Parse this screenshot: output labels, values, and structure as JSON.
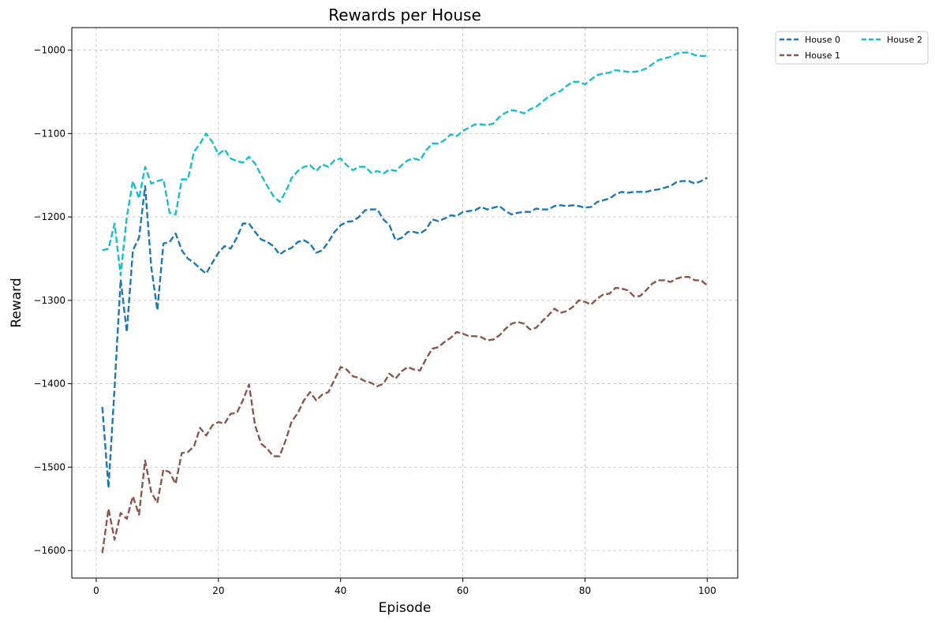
{
  "chart_data": {
    "type": "line",
    "title": "Rewards per House",
    "xlabel": "Episode",
    "ylabel": "Reward",
    "xlim": [
      -4,
      105
    ],
    "ylim": [
      -1633,
      -973
    ],
    "xticks": [
      0,
      20,
      40,
      60,
      80,
      100
    ],
    "yticks": [
      -1600,
      -1500,
      -1400,
      -1300,
      -1200,
      -1100,
      -1000
    ],
    "grid": true,
    "legend_position": "outside-top-right",
    "series": [
      {
        "name": "House 0",
        "color": "#1f77b4",
        "x": [
          1,
          2,
          3,
          4,
          5,
          6,
          7,
          8,
          9,
          10,
          11,
          12,
          13,
          14,
          15,
          16,
          17,
          18,
          19,
          20,
          21,
          22,
          23,
          24,
          25,
          26,
          27,
          28,
          29,
          30,
          31,
          32,
          33,
          34,
          35,
          36,
          37,
          38,
          39,
          40,
          41,
          42,
          43,
          44,
          45,
          46,
          47,
          48,
          49,
          50,
          51,
          52,
          53,
          54,
          55,
          56,
          57,
          58,
          59,
          60,
          61,
          62,
          63,
          64,
          65,
          66,
          67,
          68,
          69,
          70,
          71,
          72,
          73,
          74,
          75,
          76,
          77,
          78,
          79,
          80,
          81,
          82,
          83,
          84,
          85,
          86,
          87,
          88,
          89,
          90,
          91,
          92,
          93,
          94,
          95,
          96,
          97,
          98,
          99,
          100
        ],
        "values": [
          -1428,
          -1525,
          -1405,
          -1275,
          -1338,
          -1240,
          -1225,
          -1163,
          -1260,
          -1312,
          -1232,
          -1230,
          -1220,
          -1240,
          -1250,
          -1255,
          -1262,
          -1268,
          -1255,
          -1243,
          -1235,
          -1238,
          -1225,
          -1208,
          -1208,
          -1218,
          -1227,
          -1230,
          -1235,
          -1245,
          -1240,
          -1237,
          -1230,
          -1228,
          -1232,
          -1243,
          -1240,
          -1230,
          -1218,
          -1210,
          -1206,
          -1205,
          -1200,
          -1192,
          -1191,
          -1191,
          -1203,
          -1210,
          -1228,
          -1225,
          -1218,
          -1218,
          -1220,
          -1215,
          -1203,
          -1205,
          -1202,
          -1198,
          -1199,
          -1194,
          -1193,
          -1192,
          -1188,
          -1191,
          -1189,
          -1187,
          -1193,
          -1197,
          -1195,
          -1194,
          -1194,
          -1190,
          -1191,
          -1191,
          -1187,
          -1186,
          -1187,
          -1186,
          -1187,
          -1189,
          -1188,
          -1182,
          -1180,
          -1178,
          -1173,
          -1170,
          -1171,
          -1170,
          -1170,
          -1170,
          -1168,
          -1167,
          -1165,
          -1163,
          -1158,
          -1157,
          -1157,
          -1160,
          -1157,
          -1153
        ]
      },
      {
        "name": "House 1",
        "color": "#8c564b",
        "x": [
          1,
          2,
          3,
          4,
          5,
          6,
          7,
          8,
          9,
          10,
          11,
          12,
          13,
          14,
          15,
          16,
          17,
          18,
          19,
          20,
          21,
          22,
          23,
          24,
          25,
          26,
          27,
          28,
          29,
          30,
          31,
          32,
          33,
          34,
          35,
          36,
          37,
          38,
          39,
          40,
          41,
          42,
          43,
          44,
          45,
          46,
          47,
          48,
          49,
          50,
          51,
          52,
          53,
          54,
          55,
          56,
          57,
          58,
          59,
          60,
          61,
          62,
          63,
          64,
          65,
          66,
          67,
          68,
          69,
          70,
          71,
          72,
          73,
          74,
          75,
          76,
          77,
          78,
          79,
          80,
          81,
          82,
          83,
          84,
          85,
          86,
          87,
          88,
          89,
          90,
          91,
          92,
          93,
          94,
          95,
          96,
          97,
          98,
          99,
          100
        ],
        "values": [
          -1603,
          -1550,
          -1587,
          -1555,
          -1562,
          -1535,
          -1557,
          -1492,
          -1530,
          -1543,
          -1503,
          -1506,
          -1520,
          -1483,
          -1482,
          -1475,
          -1453,
          -1462,
          -1450,
          -1446,
          -1448,
          -1436,
          -1435,
          -1420,
          -1401,
          -1450,
          -1472,
          -1478,
          -1487,
          -1487,
          -1468,
          -1445,
          -1435,
          -1420,
          -1410,
          -1420,
          -1413,
          -1410,
          -1395,
          -1380,
          -1383,
          -1391,
          -1393,
          -1397,
          -1399,
          -1403,
          -1400,
          -1388,
          -1394,
          -1385,
          -1380,
          -1383,
          -1384,
          -1370,
          -1358,
          -1356,
          -1350,
          -1345,
          -1338,
          -1340,
          -1343,
          -1343,
          -1344,
          -1348,
          -1347,
          -1342,
          -1334,
          -1328,
          -1326,
          -1328,
          -1335,
          -1333,
          -1325,
          -1318,
          -1310,
          -1315,
          -1313,
          -1308,
          -1300,
          -1302,
          -1305,
          -1298,
          -1293,
          -1292,
          -1285,
          -1286,
          -1288,
          -1295,
          -1295,
          -1288,
          -1280,
          -1276,
          -1276,
          -1278,
          -1274,
          -1272,
          -1272,
          -1276,
          -1276,
          -1282
        ]
      },
      {
        "name": "House 2",
        "color": "#17becf",
        "x": [
          1,
          2,
          3,
          4,
          5,
          6,
          7,
          8,
          9,
          10,
          11,
          12,
          13,
          14,
          15,
          16,
          17,
          18,
          19,
          20,
          21,
          22,
          23,
          24,
          25,
          26,
          27,
          28,
          29,
          30,
          31,
          32,
          33,
          34,
          35,
          36,
          37,
          38,
          39,
          40,
          41,
          42,
          43,
          44,
          45,
          46,
          47,
          48,
          49,
          50,
          51,
          52,
          53,
          54,
          55,
          56,
          57,
          58,
          59,
          60,
          61,
          62,
          63,
          64,
          65,
          66,
          67,
          68,
          69,
          70,
          71,
          72,
          73,
          74,
          75,
          76,
          77,
          78,
          79,
          80,
          81,
          82,
          83,
          84,
          85,
          86,
          87,
          88,
          89,
          90,
          91,
          92,
          93,
          94,
          95,
          96,
          97,
          98,
          99,
          100
        ],
        "values": [
          -1240,
          -1238,
          -1208,
          -1270,
          -1200,
          -1157,
          -1178,
          -1140,
          -1160,
          -1157,
          -1155,
          -1195,
          -1197,
          -1155,
          -1155,
          -1122,
          -1112,
          -1100,
          -1110,
          -1125,
          -1119,
          -1130,
          -1133,
          -1135,
          -1128,
          -1136,
          -1150,
          -1163,
          -1175,
          -1182,
          -1170,
          -1153,
          -1145,
          -1140,
          -1138,
          -1145,
          -1137,
          -1140,
          -1132,
          -1130,
          -1138,
          -1144,
          -1140,
          -1140,
          -1147,
          -1145,
          -1148,
          -1143,
          -1145,
          -1138,
          -1132,
          -1130,
          -1132,
          -1120,
          -1112,
          -1112,
          -1108,
          -1101,
          -1103,
          -1097,
          -1093,
          -1089,
          -1089,
          -1090,
          -1088,
          -1080,
          -1075,
          -1072,
          -1073,
          -1076,
          -1071,
          -1068,
          -1062,
          -1056,
          -1052,
          -1049,
          -1043,
          -1038,
          -1038,
          -1041,
          -1035,
          -1030,
          -1028,
          -1027,
          -1024,
          -1025,
          -1026,
          -1026,
          -1025,
          -1022,
          -1017,
          -1012,
          -1010,
          -1008,
          -1004,
          -1003,
          -1003,
          -1006,
          -1007,
          -1007
        ]
      }
    ]
  }
}
